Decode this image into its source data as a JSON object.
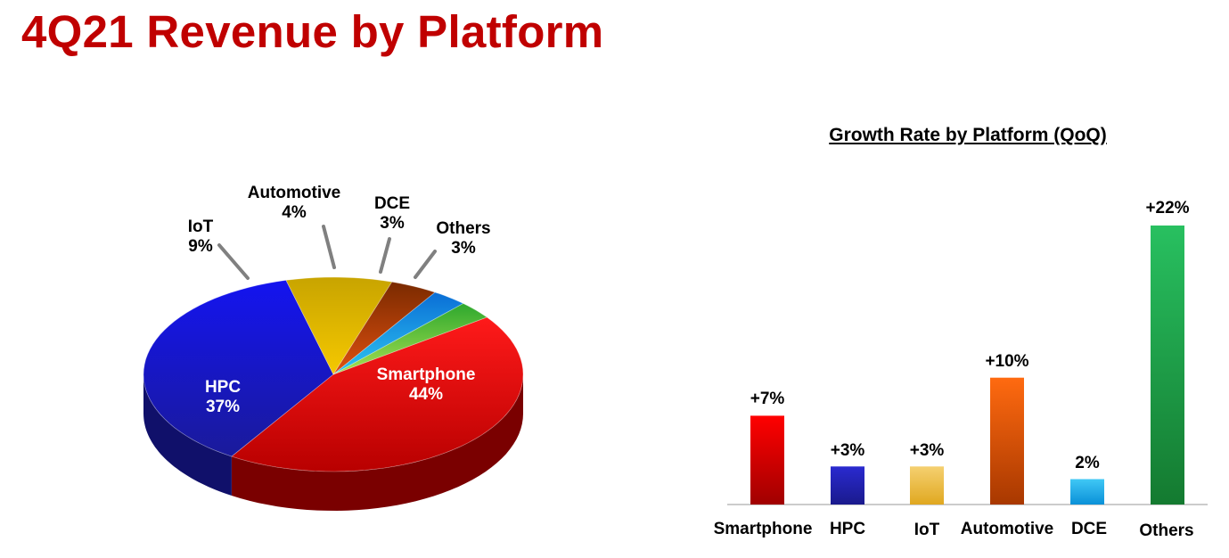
{
  "title": "4Q21 Revenue by Platform",
  "colors": {
    "title": "#c00000",
    "Smartphone": "#e51a1a",
    "HPC": "#1f1fc8",
    "IoT": "#e6b422",
    "Automotive": "#e0601a",
    "DCE": "#1aa8e6",
    "Others": "#1fb04a"
  },
  "chart_data": [
    {
      "type": "pie",
      "title": "",
      "slices": [
        {
          "label": "Smartphone",
          "value": 44,
          "text": "44%"
        },
        {
          "label": "HPC",
          "value": 37,
          "text": "37%"
        },
        {
          "label": "IoT",
          "value": 9,
          "text": "9%"
        },
        {
          "label": "Automotive",
          "value": 4,
          "text": "4%"
        },
        {
          "label": "DCE",
          "value": 3,
          "text": "3%"
        },
        {
          "label": "Others",
          "value": 3,
          "text": "3%"
        }
      ],
      "legend": "none",
      "style": "3d-exploded-labels"
    },
    {
      "type": "bar",
      "title": "Growth Rate by Platform (QoQ)",
      "categories": [
        "Smartphone",
        "HPC",
        "IoT",
        "Automotive",
        "DCE",
        "Others"
      ],
      "values": [
        7,
        3,
        3,
        10,
        2,
        22
      ],
      "value_labels": [
        "+7%",
        "+3%",
        "+3%",
        "+10%",
        "2%",
        "+22%"
      ],
      "xlabel": "",
      "ylabel": "",
      "ylim": [
        0,
        22
      ],
      "grid": false,
      "legend": "none"
    }
  ]
}
